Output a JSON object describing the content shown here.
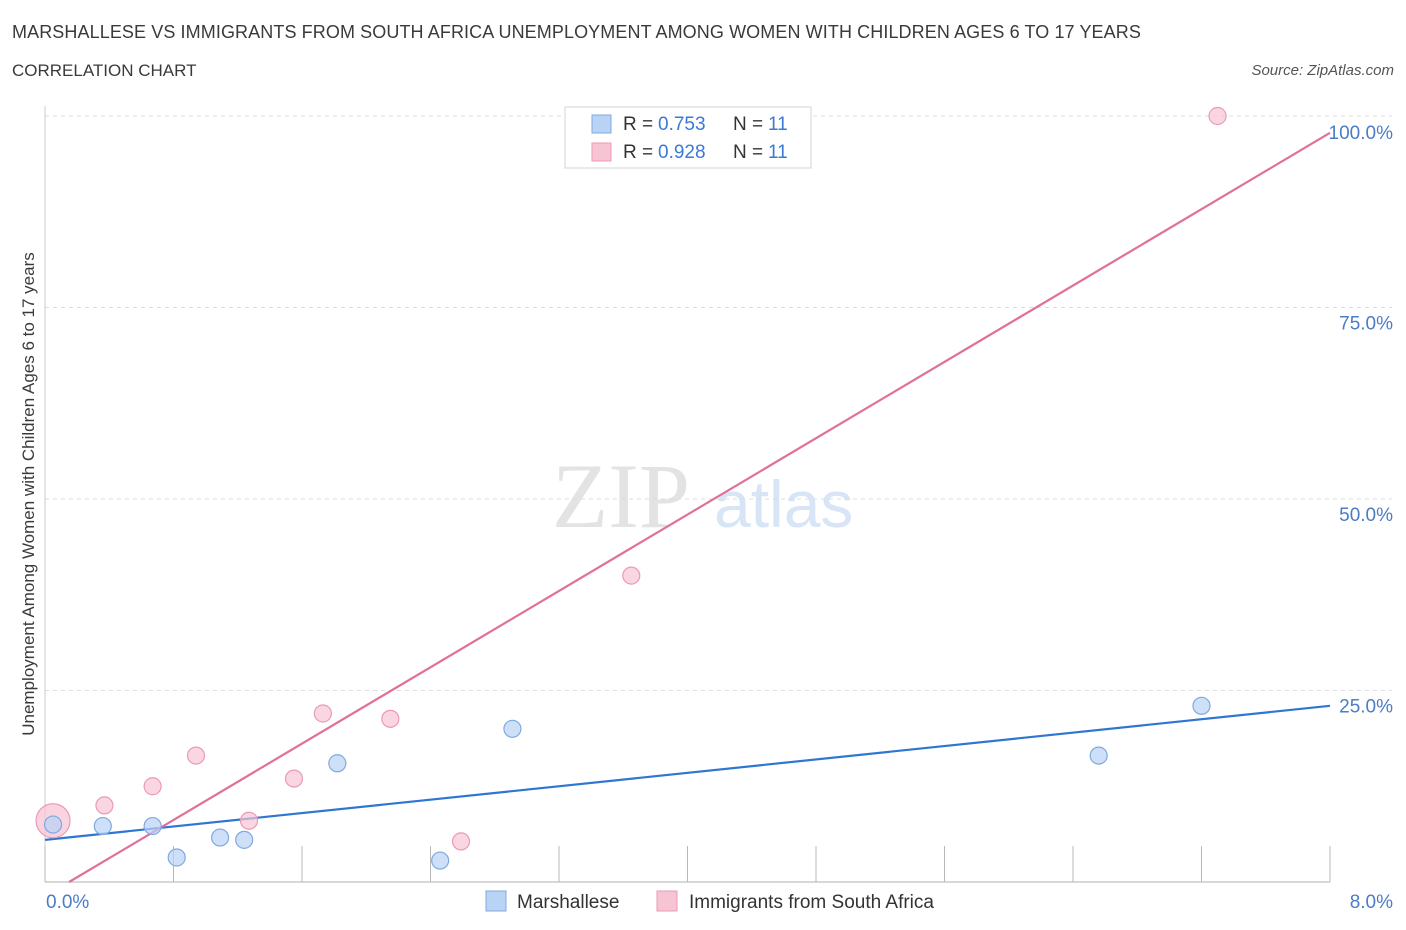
{
  "header": {
    "title": "MARSHALLESE VS IMMIGRANTS FROM SOUTH AFRICA UNEMPLOYMENT AMONG WOMEN WITH CHILDREN AGES 6 TO 17 YEARS",
    "subtitle": "CORRELATION CHART",
    "source": "Source: ZipAtlas.com"
  },
  "watermark": {
    "zip": "ZIP",
    "atlas": "atlas"
  },
  "legend": {
    "r_label": "R = ",
    "n_label": "N = ",
    "rows": [
      {
        "r": "0.753",
        "n": "11"
      },
      {
        "r": "0.928",
        "n": "11"
      }
    ]
  },
  "colors": {
    "blue_fill": "#b9d3f5",
    "blue_stroke": "#7fa9e0",
    "blue_line": "#2f76d2",
    "pink_fill": "#f7c4d4",
    "pink_stroke": "#ec9ab3",
    "pink_line": "#e0709a",
    "tick_text": "#4a7cc7",
    "grid": "#dcdcdc"
  },
  "chart_data": {
    "type": "scatter",
    "title": "MARSHALLESE VS IMMIGRANTS FROM SOUTH AFRICA UNEMPLOYMENT AMONG WOMEN WITH CHILDREN AGES 6 TO 17 YEARS",
    "xlabel": "",
    "ylabel": "Unemployment Among Women with Children Ages 6 to 17 years",
    "xlim": [
      0,
      8
    ],
    "ylim": [
      0,
      100
    ],
    "x_tick_labels": [
      {
        "value": 0,
        "label": "0.0%"
      },
      {
        "value": 8,
        "label": "8.0%"
      }
    ],
    "y_tick_labels": [
      {
        "value": 25,
        "label": "25.0%"
      },
      {
        "value": 50,
        "label": "50.0%"
      },
      {
        "value": 75,
        "label": "75.0%"
      },
      {
        "value": 100,
        "label": "100.0%"
      }
    ],
    "series": [
      {
        "name": "Marshallese",
        "r": 0.753,
        "n": 11,
        "points": [
          {
            "x": 0.05,
            "y": 7.5
          },
          {
            "x": 0.36,
            "y": 7.3
          },
          {
            "x": 0.67,
            "y": 7.3
          },
          {
            "x": 0.82,
            "y": 3.2
          },
          {
            "x": 1.09,
            "y": 5.8
          },
          {
            "x": 1.24,
            "y": 5.5
          },
          {
            "x": 1.82,
            "y": 15.5
          },
          {
            "x": 2.46,
            "y": 2.8
          },
          {
            "x": 2.91,
            "y": 20.0
          },
          {
            "x": 6.56,
            "y": 16.5
          },
          {
            "x": 7.2,
            "y": 23.0
          }
        ],
        "trend": {
          "x0": 0,
          "y0": 5.5,
          "x1": 8,
          "y1": 23.0
        }
      },
      {
        "name": "Immigrants from South Africa",
        "r": 0.928,
        "n": 11,
        "points": [
          {
            "x": 0.05,
            "y": 8.0,
            "big": true
          },
          {
            "x": 0.37,
            "y": 10.0
          },
          {
            "x": 0.67,
            "y": 12.5
          },
          {
            "x": 0.94,
            "y": 16.5
          },
          {
            "x": 1.27,
            "y": 8.0
          },
          {
            "x": 1.55,
            "y": 13.5
          },
          {
            "x": 1.73,
            "y": 22.0
          },
          {
            "x": 2.15,
            "y": 21.3
          },
          {
            "x": 2.59,
            "y": 5.3
          },
          {
            "x": 3.65,
            "y": 40.0
          },
          {
            "x": 7.3,
            "y": 100.0
          }
        ],
        "trend": {
          "x0": 0.15,
          "y0": 0,
          "x1": 8,
          "y1": 97.8
        }
      }
    ],
    "legend_bottom": [
      "Marshallese",
      "Immigrants from South Africa"
    ]
  }
}
